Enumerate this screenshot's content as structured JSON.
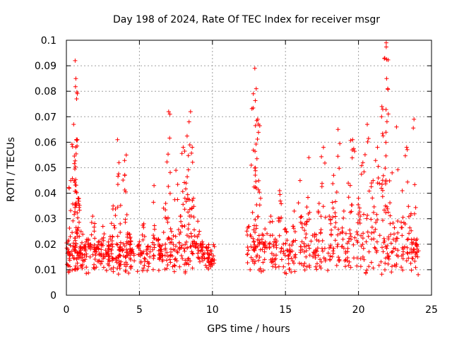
{
  "chart_data": {
    "type": "scatter",
    "title": "Day 198 of 2024, Rate Of TEC Index for receiver msgr",
    "xlabel": "GPS time / hours",
    "ylabel": "ROTI / TECUs",
    "xlim": [
      0,
      25
    ],
    "ylim": [
      0,
      0.1
    ],
    "xticks": [
      0,
      5,
      10,
      15,
      20,
      25
    ],
    "yticks": [
      0,
      0.01,
      0.02,
      0.03,
      0.04,
      0.05,
      0.06,
      0.07,
      0.08,
      0.09,
      0.1
    ],
    "grid": true,
    "marker": "+",
    "color": "#ff0000",
    "series": [
      {
        "name": "ROTI",
        "x": [
          0.1,
          0.3,
          0.5,
          0.6,
          0.65,
          0.7,
          0.75,
          0.8,
          1.0,
          1.2,
          1.5,
          1.8,
          2.0,
          2.3,
          2.5,
          2.8,
          3.0,
          3.2,
          3.5,
          3.6,
          3.7,
          4.0,
          4.1,
          4.3,
          4.5,
          5.0,
          5.3,
          5.6,
          6.0,
          6.3,
          6.5,
          6.8,
          7.0,
          7.2,
          7.5,
          7.8,
          8.0,
          8.2,
          8.4,
          8.5,
          8.7,
          9.0,
          9.3,
          9.6,
          9.8,
          10.0,
          12.5,
          12.8,
          12.9,
          13.0,
          13.1,
          13.3,
          13.6,
          14.0,
          14.3,
          14.6,
          15.0,
          15.3,
          15.6,
          16.0,
          16.3,
          16.6,
          17.0,
          17.3,
          17.6,
          18.0,
          18.3,
          18.6,
          19.0,
          19.3,
          19.6,
          20.0,
          20.3,
          20.6,
          21.0,
          21.3,
          21.6,
          21.8,
          21.9,
          22.0,
          22.3,
          22.6,
          23.0,
          23.3,
          23.6,
          23.8,
          24.0
        ],
        "y": [
          0.021,
          0.045,
          0.067,
          0.092,
          0.085,
          0.077,
          0.061,
          0.038,
          0.025,
          0.019,
          0.022,
          0.031,
          0.018,
          0.021,
          0.027,
          0.017,
          0.023,
          0.035,
          0.061,
          0.052,
          0.019,
          0.047,
          0.055,
          0.024,
          0.018,
          0.021,
          0.028,
          0.019,
          0.043,
          0.022,
          0.018,
          0.036,
          0.072,
          0.025,
          0.049,
          0.031,
          0.058,
          0.044,
          0.068,
          0.072,
          0.038,
          0.029,
          0.021,
          0.019,
          0.016,
          0.014,
          0.027,
          0.079,
          0.089,
          0.081,
          0.069,
          0.038,
          0.026,
          0.031,
          0.022,
          0.041,
          0.026,
          0.018,
          0.033,
          0.045,
          0.028,
          0.054,
          0.024,
          0.036,
          0.058,
          0.031,
          0.047,
          0.065,
          0.033,
          0.044,
          0.061,
          0.038,
          0.052,
          0.067,
          0.045,
          0.058,
          0.074,
          0.093,
          0.099,
          0.081,
          0.048,
          0.066,
          0.041,
          0.058,
          0.032,
          0.069,
          0.022
        ]
      }
    ]
  }
}
